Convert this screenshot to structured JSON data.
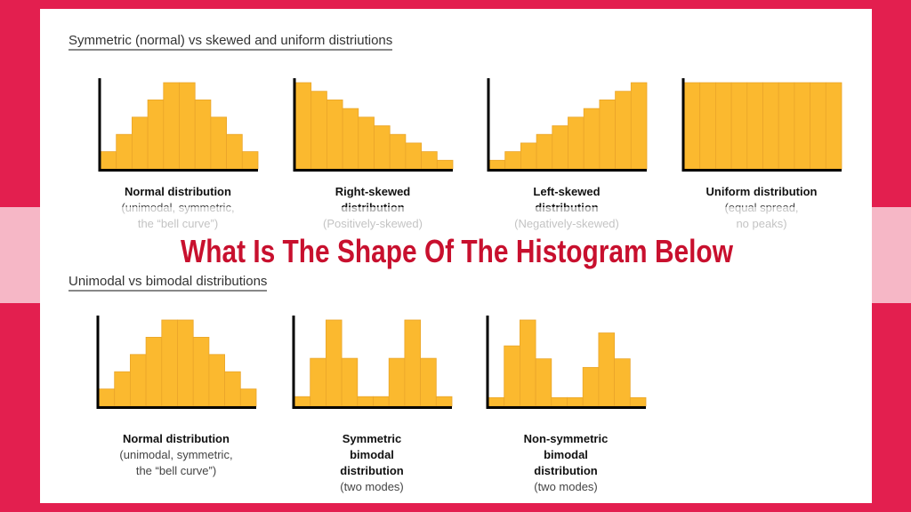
{
  "headings": {
    "top": "Symmetric (normal) vs skewed and uniform distriutions",
    "bottom": "Unimodal vs bimodal distributions"
  },
  "overlay_title": {
    "line1": "What Is The Shape Of The Histogram",
    "line2": "Below"
  },
  "colors": {
    "background": "#e31f4f",
    "bar": "#fbb92f",
    "bar_edge": "#eaa52a",
    "title": "#c8102e",
    "axis": "#000000"
  },
  "chart_data": [
    {
      "type": "bar",
      "caption_bold": "Normal distribution",
      "caption_lines": [
        "(unimodal, symmetric,",
        "the “bell curve”)"
      ],
      "values": [
        1,
        2,
        3,
        4,
        5,
        5,
        4,
        3,
        2,
        1
      ]
    },
    {
      "type": "bar",
      "caption_bold": "Right-skewed distribution",
      "caption_lines": [
        "(Positively-skewed)"
      ],
      "values": [
        10,
        9,
        8,
        7,
        6,
        5,
        4,
        3,
        2,
        1
      ]
    },
    {
      "type": "bar",
      "caption_bold": "Left-skewed distribution",
      "caption_lines": [
        "(Negatively-skewed)"
      ],
      "values": [
        1,
        2,
        3,
        4,
        5,
        6,
        7,
        8,
        9,
        10
      ]
    },
    {
      "type": "bar",
      "caption_bold": "Uniform distribution",
      "caption_lines": [
        "(equal spread,",
        "no peaks)"
      ],
      "values": [
        1,
        1,
        1,
        1,
        1,
        1,
        1,
        1,
        1,
        1
      ]
    },
    {
      "type": "bar",
      "caption_bold": "Normal distribution",
      "caption_lines": [
        "(unimodal, symmetric,",
        "the “bell curve”)"
      ],
      "values": [
        1,
        2,
        3,
        4,
        5,
        5,
        4,
        3,
        2,
        1
      ]
    },
    {
      "type": "bar",
      "caption_bold": "Symmetric bimodal distribution",
      "caption_lines": [
        "(two modes)"
      ],
      "values": [
        1,
        5,
        9,
        5,
        1,
        1,
        5,
        9,
        5,
        1
      ]
    },
    {
      "type": "bar",
      "caption_bold": "Non-symmetric bimodal distribution",
      "caption_lines": [
        "(two modes)"
      ],
      "values": [
        1,
        7,
        10,
        5.5,
        1,
        1,
        4.5,
        8.5,
        5.5,
        1
      ]
    }
  ]
}
